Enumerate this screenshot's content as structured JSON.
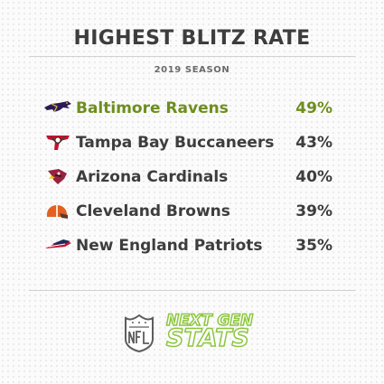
{
  "title": "HIGHEST BLITZ RATE",
  "subtitle": "2019 SEASON",
  "accent_color": "#6e8e1e",
  "text_color": "#3d3d3d",
  "chart_data": {
    "type": "table",
    "title": "HIGHEST BLITZ RATE",
    "subtitle": "2019 SEASON",
    "rows": [
      {
        "team": "Baltimore Ravens",
        "value": "49%",
        "logo": "ravens-logo-icon",
        "highlight": true
      },
      {
        "team": "Tampa Bay Buccaneers",
        "value": "43%",
        "logo": "buccaneers-logo-icon",
        "highlight": false
      },
      {
        "team": "Arizona Cardinals",
        "value": "40%",
        "logo": "cardinals-logo-icon",
        "highlight": false
      },
      {
        "team": "Cleveland Browns",
        "value": "39%",
        "logo": "browns-logo-icon",
        "highlight": false
      },
      {
        "team": "New England Patriots",
        "value": "35%",
        "logo": "patriots-logo-icon",
        "highlight": false
      }
    ]
  },
  "branding": {
    "league_logo": "nfl-shield-icon",
    "line1": "NEXT GEN",
    "line2": "STATS"
  }
}
